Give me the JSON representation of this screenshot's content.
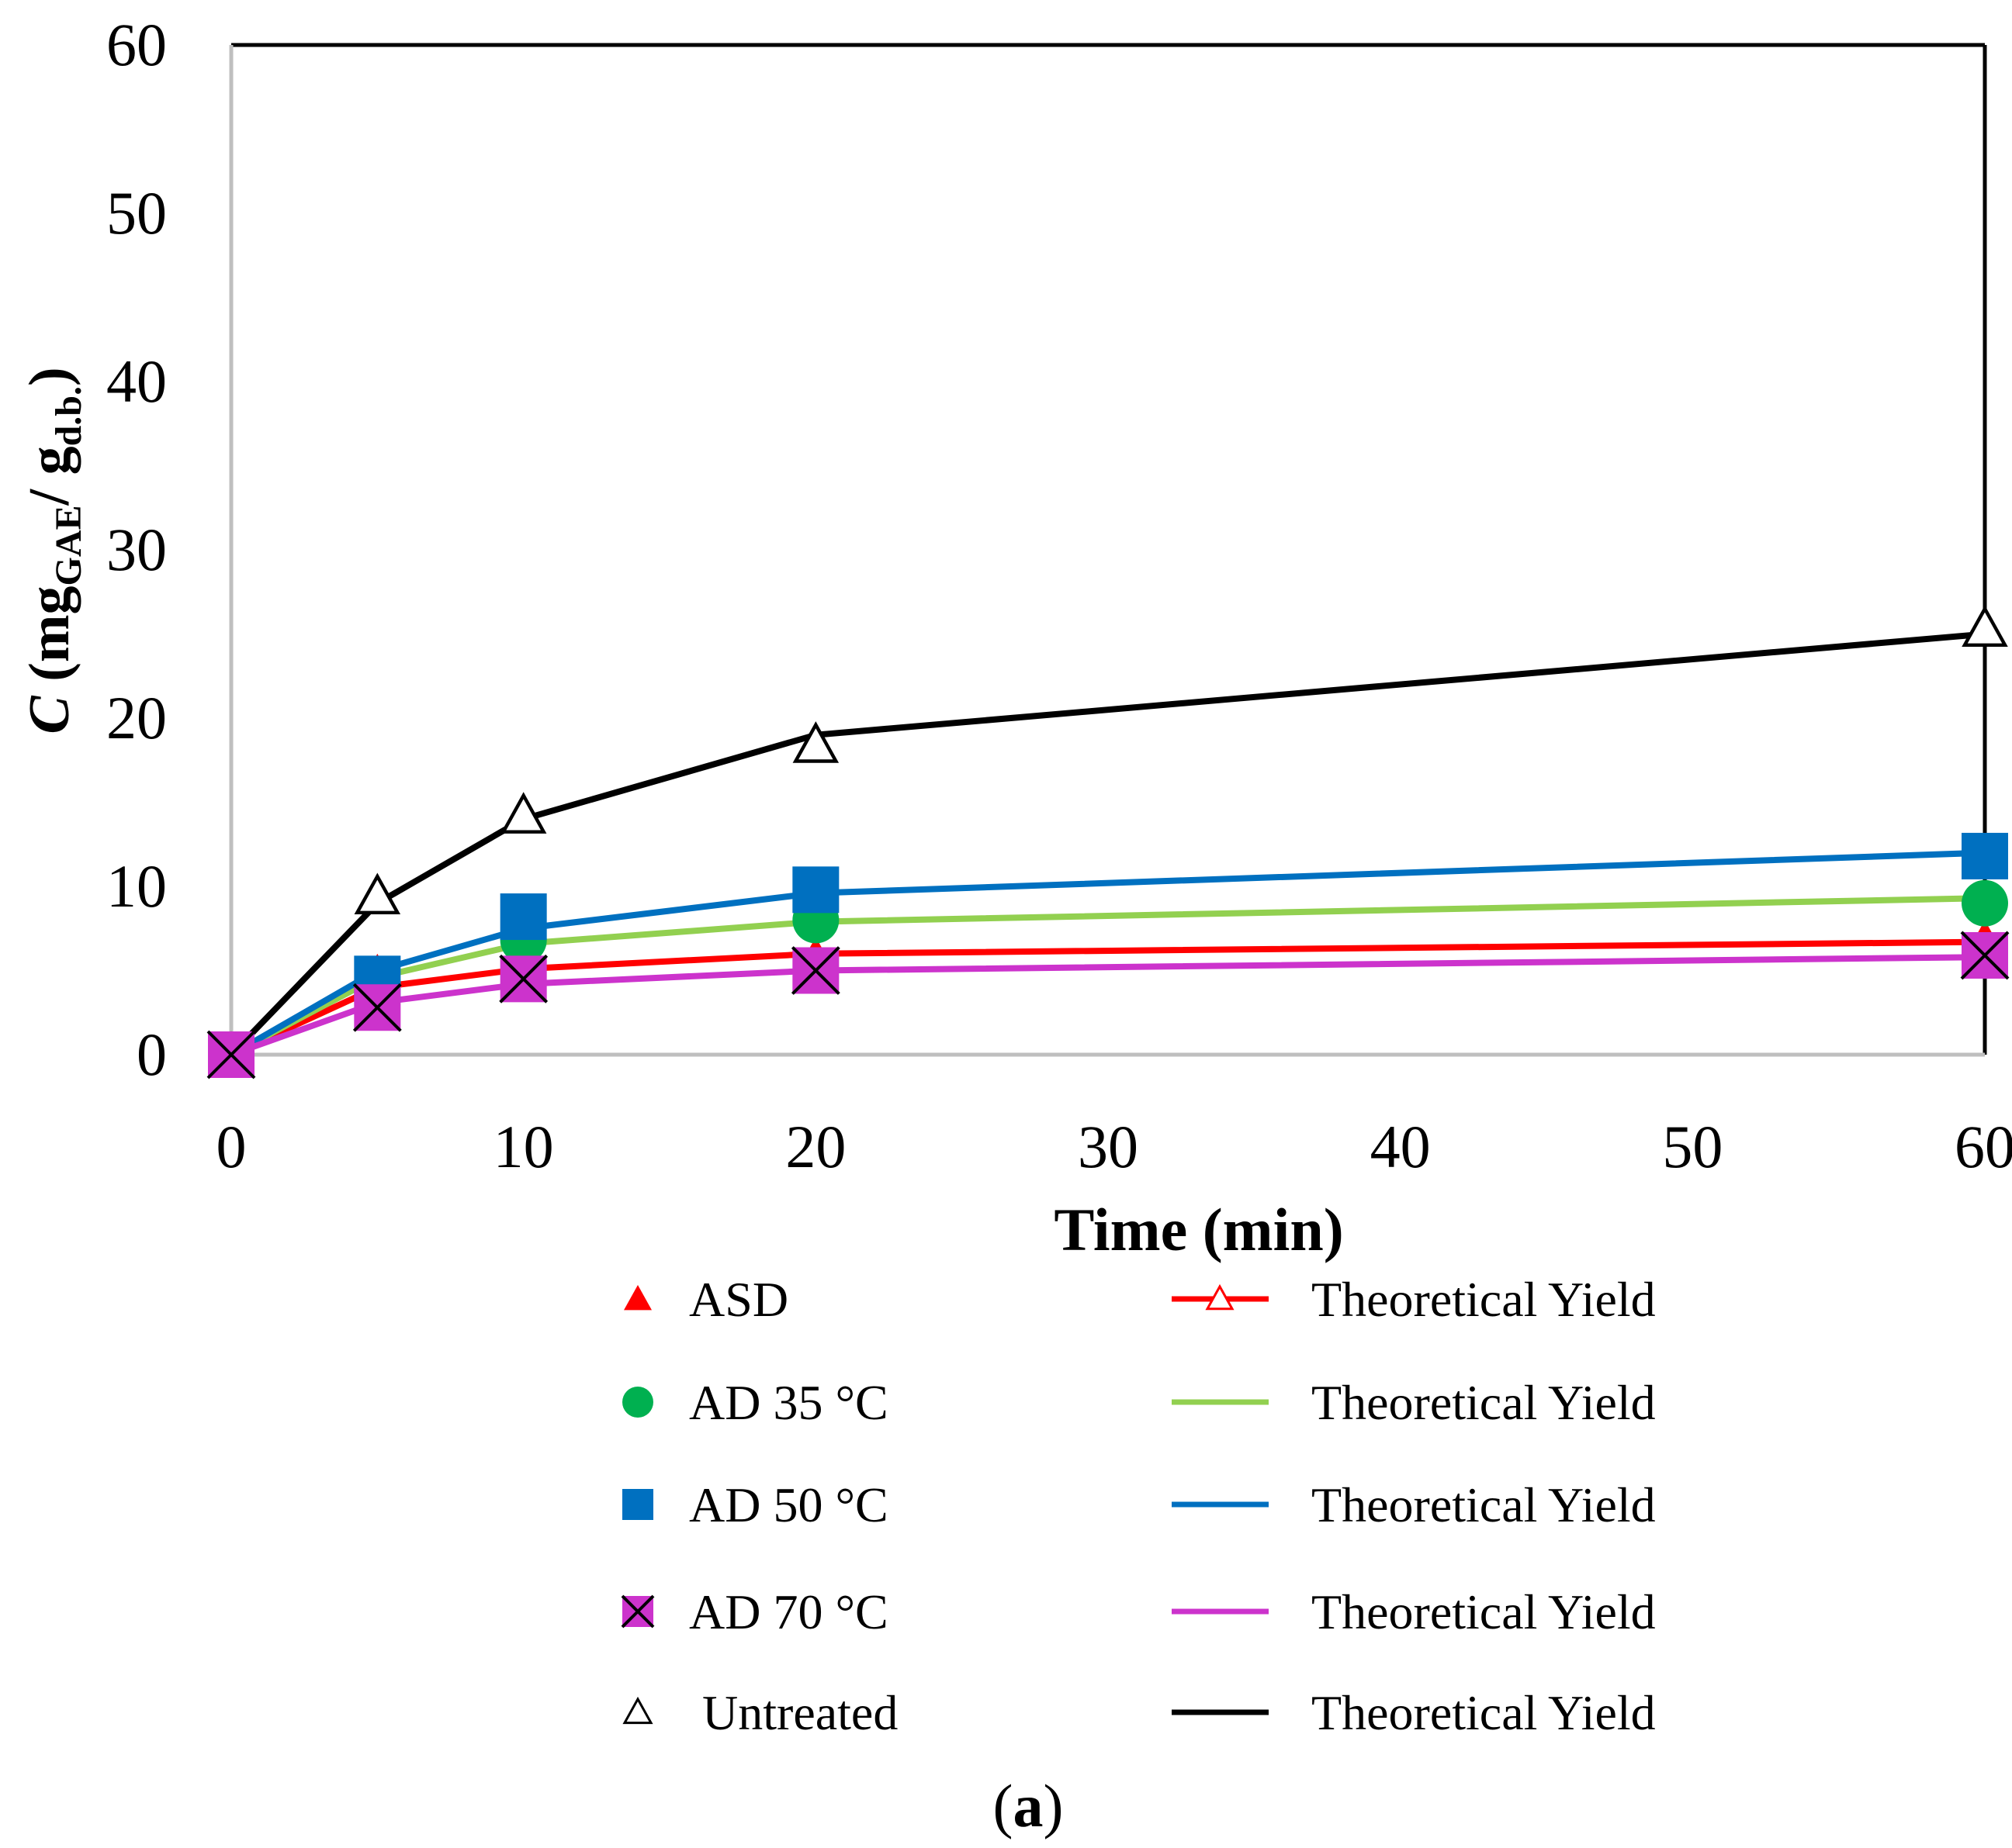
{
  "chart_data": {
    "type": "line",
    "title": "",
    "panel_label": {
      "open": "(",
      "letter": "a",
      "close": ")"
    },
    "xlabel": "Time (min)",
    "ylabel": {
      "italic": "C",
      "open": " (mg",
      "sub1": "GAE",
      "mid": "/ g",
      "sub2": "d.b.",
      "close": ")"
    },
    "xlim": [
      0,
      60
    ],
    "ylim": [
      0,
      60
    ],
    "xticks": [
      0,
      10,
      20,
      30,
      40,
      50,
      60
    ],
    "yticks": [
      0,
      10,
      20,
      30,
      40,
      50,
      60
    ],
    "grid": false,
    "legend_position": "bottom",
    "series": [
      {
        "name": "ASD",
        "marker": "filled-triangle",
        "color": "#ff0000",
        "x": [
          0,
          5,
          10,
          20,
          60
        ],
        "values": [
          0,
          4.8,
          5.3,
          5.8,
          6.8
        ],
        "fit_name": "Theoretical Yield",
        "fit_color": "#ff0000",
        "fit_marker": "open-triangle",
        "fit_x": [
          0,
          5,
          10,
          20,
          60
        ],
        "fit_values": [
          0,
          4.0,
          5.1,
          6.0,
          6.7
        ]
      },
      {
        "name": "AD 35 °C",
        "marker": "circle",
        "color": "#00b050",
        "x": [
          0,
          5,
          10,
          20,
          60
        ],
        "values": [
          0,
          4.3,
          6.8,
          8.0,
          9.0
        ],
        "fit_name": "Theoretical Yield",
        "fit_color": "#92d050",
        "fit_marker": "none",
        "fit_x": [
          0,
          5,
          10,
          20,
          60
        ],
        "fit_values": [
          0,
          4.6,
          6.6,
          7.9,
          9.3
        ]
      },
      {
        "name": "AD 50 °C",
        "marker": "square",
        "color": "#0070c0",
        "x": [
          0,
          5,
          10,
          20,
          60
        ],
        "values": [
          0,
          4.5,
          8.2,
          9.8,
          11.8
        ],
        "fit_name": "Theoretical Yield",
        "fit_color": "#0070c0",
        "fit_marker": "none",
        "fit_x": [
          0,
          5,
          10,
          20,
          60
        ],
        "fit_values": [
          0,
          5.0,
          7.5,
          9.6,
          12.0
        ]
      },
      {
        "name": "AD 70 °C",
        "marker": "square-x",
        "color": "#cc33cc",
        "x": [
          0,
          5,
          10,
          20,
          60
        ],
        "values": [
          0,
          2.8,
          4.5,
          5.0,
          5.9
        ],
        "fit_name": "Theoretical Yield",
        "fit_color": "#cc33cc",
        "fit_marker": "none",
        "fit_x": [
          0,
          5,
          10,
          20,
          60
        ],
        "fit_values": [
          0,
          3.1,
          4.2,
          5.0,
          5.8
        ]
      },
      {
        "name": "Untreated",
        "marker": "open-triangle",
        "color": "#000000",
        "x": [
          0,
          5,
          10,
          20,
          60
        ],
        "values": [
          0,
          9.4,
          14.2,
          18.4,
          25.3
        ],
        "fit_name": "Theoretical Yield",
        "fit_color": "#000000",
        "fit_marker": "none",
        "fit_x": [
          0,
          5,
          10,
          20,
          60
        ],
        "fit_values": [
          0,
          9.0,
          14.0,
          19.0,
          25.0
        ]
      }
    ]
  }
}
